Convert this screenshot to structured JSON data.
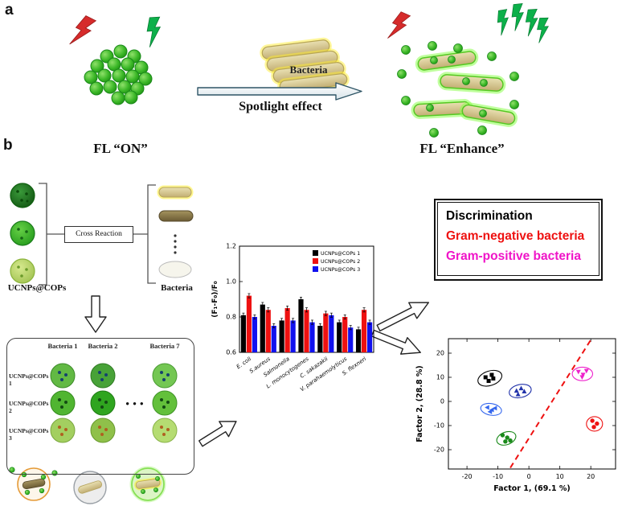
{
  "panel_a": {
    "label": "a",
    "bacteria_label": "Bacteria",
    "arrow_label": "Spotlight effect",
    "fl_on": "FL “ON”",
    "fl_enhance": "FL “Enhance”"
  },
  "panel_b": {
    "label": "b",
    "cross_reaction_label": "Cross Reaction",
    "ucnps_label": "UCNPs@COPs",
    "bacteria_label": "Bacteria",
    "matrix": {
      "col_headers": [
        "Bacteria 1",
        "Bacteria 2",
        "Bacteria 7"
      ],
      "row_labels": [
        "UCNPs@COPs 1",
        "UCNPs@COPs 2",
        "UCNPs@COPs 3"
      ],
      "ellipsis": "● ● ●"
    },
    "discrimination": {
      "lines": [
        {
          "text": "Discrimination",
          "color": "#000000"
        },
        {
          "text": "Gram-negative bacteria",
          "color": "#ee1111"
        },
        {
          "text": "Gram-positive bacteria",
          "color": "#f014c8"
        }
      ]
    }
  },
  "chart_data": [
    {
      "type": "bar",
      "title": "",
      "ylabel": "(F₁-F₀)/F₀",
      "xlabel": "",
      "ylim": [
        0.6,
        1.2
      ],
      "yticks": [
        0.6,
        0.8,
        1.0,
        1.2
      ],
      "grid": false,
      "legend_position": "top-right",
      "categories": [
        "E. coli",
        "S.aureus",
        "Salmonella",
        "L. monocytogenes",
        "C. sakazakii",
        "V. parahaemolyticus",
        "S. flexneri"
      ],
      "series": [
        {
          "name": "UCNPs@COPs 1",
          "color": "#000000",
          "values": [
            0.81,
            0.87,
            0.78,
            0.9,
            0.75,
            0.77,
            0.73
          ]
        },
        {
          "name": "UCNPs@COPs 2",
          "color": "#ee1111",
          "values": [
            0.92,
            0.84,
            0.85,
            0.84,
            0.82,
            0.8,
            0.84
          ]
        },
        {
          "name": "UCNPs@COPs 3",
          "color": "#1111ee",
          "values": [
            0.8,
            0.75,
            0.78,
            0.77,
            0.81,
            0.74,
            0.77
          ]
        }
      ],
      "error": 0.012
    },
    {
      "type": "scatter",
      "xlabel": "Factor 1, (69.1 %)",
      "ylabel": "Factor 2, (28.8 %)",
      "xlim": [
        -26,
        28
      ],
      "ylim": [
        -28,
        26
      ],
      "xticks": [
        -20,
        -10,
        0,
        10,
        20
      ],
      "yticks": [
        -20,
        -10,
        0,
        10,
        20
      ],
      "clusters": [
        {
          "name": "cluster-1",
          "color": "#000000",
          "marker": "square",
          "points": [
            [
              -14,
              10
            ],
            [
              -12,
              11
            ],
            [
              -13,
              8.5
            ],
            [
              -11.5,
              9.5
            ]
          ],
          "ellipse": {
            "cx": -12.6,
            "cy": 9.6,
            "rx": 4.0,
            "ry": 3.0,
            "rot": -18
          }
        },
        {
          "name": "cluster-2",
          "color": "#2233aa",
          "marker": "triangle-up",
          "points": [
            [
              -4,
              4.5
            ],
            [
              -2.5,
              5.5
            ],
            [
              -3.5,
              3
            ],
            [
              -1.5,
              4.2
            ]
          ],
          "ellipse": {
            "cx": -2.8,
            "cy": 4.3,
            "rx": 3.6,
            "ry": 2.7,
            "rot": -12
          }
        },
        {
          "name": "cluster-3",
          "color": "#3366ee",
          "marker": "triangle-left",
          "points": [
            [
              -13.5,
              -2.5
            ],
            [
              -12,
              -3.5
            ],
            [
              -11,
              -2.8
            ],
            [
              -12.6,
              -4.3
            ]
          ],
          "ellipse": {
            "cx": -12.2,
            "cy": -3.3,
            "rx": 3.4,
            "ry": 2.4,
            "rot": 10
          }
        },
        {
          "name": "cluster-4",
          "color": "#1a8a1a",
          "marker": "circle",
          "points": [
            [
              -8.5,
              -14
            ],
            [
              -7,
              -15
            ],
            [
              -6,
              -16.2
            ],
            [
              -7.6,
              -16.6
            ]
          ],
          "ellipse": {
            "cx": -7.3,
            "cy": -15.3,
            "rx": 3.2,
            "ry": 2.6,
            "rot": -20
          }
        },
        {
          "name": "cluster-5",
          "color": "#ee22cc",
          "marker": "triangle-down",
          "points": [
            [
              16,
              12.2
            ],
            [
              17.5,
              11
            ],
            [
              18.6,
              12.6
            ],
            [
              17.2,
              10
            ]
          ],
          "ellipse": {
            "cx": 17.3,
            "cy": 11.4,
            "rx": 3.3,
            "ry": 2.8,
            "rot": 0
          }
        },
        {
          "name": "cluster-6",
          "color": "#ee1111",
          "marker": "circle",
          "points": [
            [
              20.5,
              -8
            ],
            [
              22,
              -9.2
            ],
            [
              21,
              -10.6
            ]
          ],
          "ellipse": {
            "cx": 21.2,
            "cy": -9.3,
            "rx": 2.6,
            "ry": 3.0,
            "rot": 0
          }
        }
      ],
      "divider": {
        "color": "#ee1111",
        "style": "dashed",
        "from": [
          -6,
          -27.5
        ],
        "to": [
          20,
          25.5
        ]
      }
    }
  ]
}
